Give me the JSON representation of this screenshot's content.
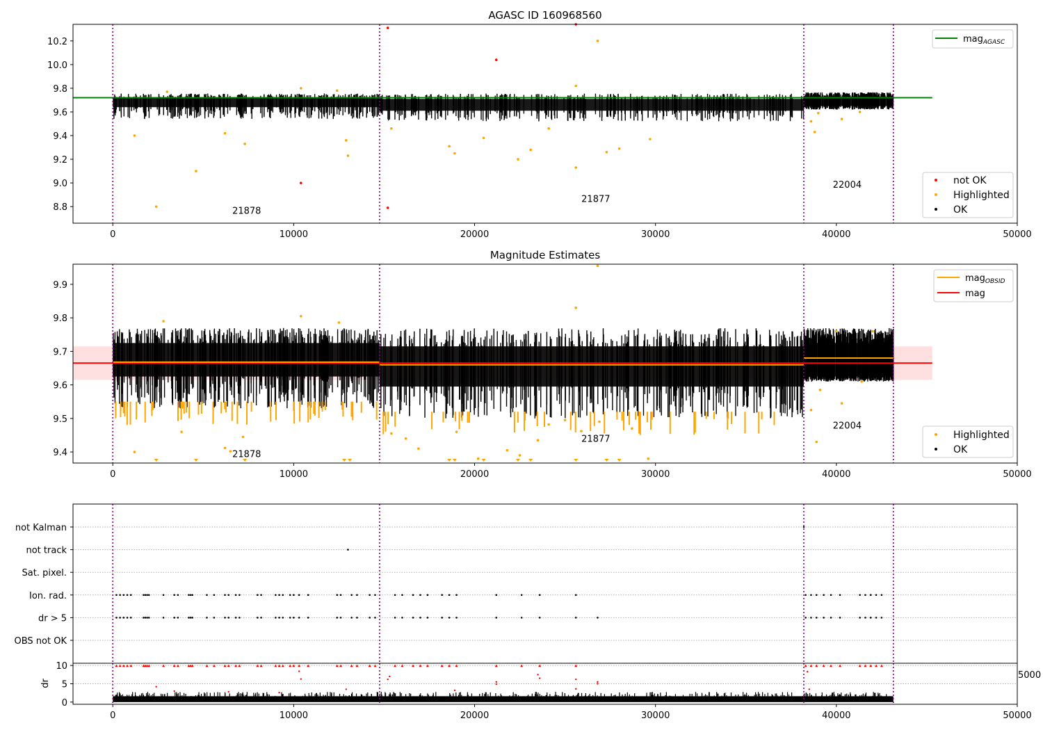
{
  "chart_data": [
    {
      "type": "scatter",
      "title": "AGASC ID 160968560",
      "xlabel": "",
      "ylabel": "",
      "xlim": [
        -2200,
        50000
      ],
      "ylim": [
        8.66,
        10.34
      ],
      "xticks": [
        0,
        10000,
        20000,
        30000,
        40000,
        50000
      ],
      "xtick_labels": [
        "0",
        "10000",
        "20000",
        "30000",
        "40000",
        "50000"
      ],
      "yticks": [
        8.8,
        9.0,
        9.2,
        9.4,
        9.6,
        9.8,
        10.0,
        10.2
      ],
      "ytick_labels": [
        "8.8",
        "9.0",
        "9.2",
        "9.4",
        "9.6",
        "9.8",
        "10.0",
        "10.2"
      ],
      "grid": false,
      "obsid_boundaries": [
        0,
        14750,
        38200,
        43150
      ],
      "obsid_labels": [
        {
          "text": "21878",
          "x": 7400,
          "y": 8.74
        },
        {
          "text": "21877",
          "x": 26700,
          "y": 8.84
        },
        {
          "text": "22004",
          "x": 40600,
          "y": 8.96
        }
      ],
      "lines": [
        {
          "name": "mag_AGASC",
          "value": 9.72,
          "x_range": [
            -2200,
            45300
          ],
          "color": "#008000"
        }
      ],
      "ok_bands": [
        {
          "x_range": [
            0,
            14750
          ],
          "center": 9.68,
          "half_width": 0.04,
          "dip_low": 9.54
        },
        {
          "x_range": [
            14750,
            38200
          ],
          "center": 9.66,
          "half_width": 0.05,
          "dip_low": 9.52
        },
        {
          "x_range": [
            38200,
            43150
          ],
          "center": 9.69,
          "half_width": 0.04,
          "dip_low": 9.62
        }
      ],
      "series": [
        {
          "name": "not OK",
          "color": "#ff0000",
          "points": [
            [
              10400,
              9.0
            ],
            [
              15200,
              8.79
            ],
            [
              15200,
              10.31
            ],
            [
              21200,
              10.04
            ],
            [
              25600,
              10.34
            ]
          ]
        },
        {
          "name": "Highlighted",
          "color": "#ffa500",
          "points": [
            [
              2400,
              8.8
            ],
            [
              4600,
              9.1
            ],
            [
              1200,
              9.4
            ],
            [
              6200,
              9.42
            ],
            [
              7300,
              9.33
            ],
            [
              12900,
              9.36
            ],
            [
              13000,
              9.23
            ],
            [
              15400,
              9.46
            ],
            [
              18600,
              9.31
            ],
            [
              18900,
              9.25
            ],
            [
              20500,
              9.38
            ],
            [
              22400,
              9.2
            ],
            [
              23100,
              9.28
            ],
            [
              24100,
              9.46
            ],
            [
              25600,
              9.13
            ],
            [
              26800,
              10.2
            ],
            [
              25600,
              9.82
            ],
            [
              27300,
              9.26
            ],
            [
              28000,
              9.29
            ],
            [
              29700,
              9.37
            ],
            [
              10400,
              9.8
            ],
            [
              12400,
              9.78
            ],
            [
              3000,
              9.77
            ],
            [
              38600,
              9.52
            ],
            [
              38800,
              9.43
            ],
            [
              39000,
              9.59
            ],
            [
              40300,
              9.54
            ],
            [
              41300,
              9.6
            ]
          ]
        },
        {
          "name": "OK",
          "color": "#000000",
          "points": []
        }
      ],
      "legend_upper": {
        "position": "upper right",
        "entries": [
          "mag_AGASC"
        ]
      },
      "legend_lower": {
        "position": "lower right",
        "entries": [
          "not OK",
          "Highlighted",
          "OK"
        ]
      }
    },
    {
      "type": "scatter",
      "title": "Magnitude Estimates",
      "xlabel": "",
      "ylabel": "",
      "xlim": [
        -2200,
        50000
      ],
      "ylim": [
        9.367,
        9.96
      ],
      "xticks": [
        0,
        10000,
        20000,
        30000,
        40000,
        50000
      ],
      "xtick_labels": [
        "0",
        "10000",
        "20000",
        "30000",
        "40000",
        "50000"
      ],
      "yticks": [
        9.4,
        9.5,
        9.6,
        9.7,
        9.8,
        9.9
      ],
      "ytick_labels": [
        "9.4",
        "9.5",
        "9.6",
        "9.7",
        "9.8",
        "9.9"
      ],
      "grid": false,
      "obsid_boundaries": [
        0,
        14750,
        38200,
        43150
      ],
      "obsid_labels": [
        {
          "text": "21878",
          "x": 7400,
          "y": 9.385
        },
        {
          "text": "21877",
          "x": 26700,
          "y": 9.43
        },
        {
          "text": "22004",
          "x": 40600,
          "y": 9.47
        }
      ],
      "mag": {
        "value": 9.665,
        "band": [
          9.615,
          9.715
        ],
        "x_range": [
          -2200,
          45300
        ],
        "color": "#ff0000"
      },
      "mag_obsid": [
        {
          "x_range": [
            0,
            14750
          ],
          "value": 9.668
        },
        {
          "x_range": [
            14750,
            38200
          ],
          "value": 9.66
        },
        {
          "x_range": [
            38200,
            43150
          ],
          "value": 9.68
        }
      ],
      "ok_bands": [
        {
          "x_range": [
            0,
            14750
          ],
          "center": 9.675,
          "half_width": 0.05,
          "dip_low": 9.53
        },
        {
          "x_range": [
            14750,
            38200
          ],
          "center": 9.655,
          "half_width": 0.06,
          "dip_low": 9.5
        },
        {
          "x_range": [
            38200,
            43150
          ],
          "center": 9.675,
          "half_width": 0.05,
          "dip_low": 9.61
        }
      ],
      "series": [
        {
          "name": "Highlighted",
          "color": "#ffa500",
          "points": [
            [
              2800,
              9.79
            ],
            [
              10400,
              9.805
            ],
            [
              12500,
              9.786
            ],
            [
              25600,
              9.83
            ],
            [
              26800,
              9.955
            ],
            [
              1200,
              9.4
            ],
            [
              3800,
              9.46
            ],
            [
              6200,
              9.412
            ],
            [
              6500,
              9.402
            ],
            [
              7200,
              9.445
            ],
            [
              15400,
              9.455
            ],
            [
              16200,
              9.44
            ],
            [
              16900,
              9.41
            ],
            [
              19000,
              9.46
            ],
            [
              20200,
              9.38
            ],
            [
              21800,
              9.405
            ],
            [
              22500,
              9.39
            ],
            [
              23500,
              9.435
            ],
            [
              24100,
              9.482
            ],
            [
              25000,
              9.495
            ],
            [
              25900,
              9.462
            ],
            [
              26900,
              9.49
            ],
            [
              28700,
              9.47
            ],
            [
              29600,
              9.38
            ],
            [
              38600,
              9.525
            ],
            [
              38900,
              9.43
            ],
            [
              39100,
              9.585
            ],
            [
              40300,
              9.545
            ],
            [
              41400,
              9.61
            ],
            [
              42000,
              9.76
            ],
            [
              40000,
              9.76
            ]
          ]
        },
        {
          "name": "OK",
          "color": "#000000",
          "points": []
        }
      ],
      "below_range_markers_x": [
        2400,
        4600,
        7300,
        12800,
        13100,
        18600,
        18900,
        20500,
        22400,
        23100,
        25600,
        27300,
        28000
      ],
      "legend_upper": {
        "position": "upper right",
        "entries": [
          "mag_OBSID",
          "mag"
        ]
      },
      "legend_lower": {
        "position": "lower right",
        "entries": [
          "Highlighted",
          "OK"
        ]
      }
    },
    {
      "type": "scatter",
      "title": "",
      "xlabel": "",
      "ylabel": "",
      "xlim": [
        -2200,
        50000
      ],
      "categories": [
        "not Kalman",
        "not track",
        "Sat. pixel.",
        "Ion. rad.",
        "dr > 5",
        "OBS not OK"
      ],
      "grid": "horizontal dotted",
      "obsid_boundaries": [
        0,
        14750,
        38200,
        43150
      ],
      "flag_points": {
        "not track": [
          13000
        ],
        "Ion. rad.": [
          200,
          400,
          600,
          800,
          1000,
          1700,
          1800,
          1900,
          2000,
          2800,
          3400,
          3600,
          4200,
          4300,
          4400,
          5200,
          5600,
          6200,
          6400,
          6800,
          7000,
          8000,
          8200,
          9000,
          9200,
          9400,
          9800,
          10000,
          10300,
          10800,
          12400,
          12600,
          13200,
          13500,
          14200,
          14500,
          15600,
          16000,
          16600,
          17000,
          17400,
          18200,
          18600,
          19000,
          21200,
          22600,
          23600,
          25600,
          38300,
          38600,
          38900,
          39300,
          39700,
          40200,
          41300,
          41600,
          41900,
          42200,
          42500
        ],
        "dr > 5": [
          200,
          400,
          600,
          800,
          1000,
          1700,
          1800,
          1900,
          2000,
          2800,
          3400,
          3600,
          4200,
          4300,
          4400,
          5200,
          5600,
          6200,
          6400,
          6800,
          7000,
          8000,
          8200,
          9000,
          9200,
          9400,
          9800,
          10000,
          10300,
          10800,
          12400,
          12600,
          13200,
          13500,
          14200,
          14500,
          15600,
          16000,
          16600,
          17000,
          17400,
          18200,
          18600,
          19000,
          21200,
          22600,
          23600,
          25600,
          26800,
          38300,
          38600,
          38900,
          39300,
          39700,
          40200,
          41300,
          41600,
          41900,
          42200,
          42500
        ]
      }
    },
    {
      "type": "scatter",
      "title": "",
      "xlabel": "",
      "ylabel": "dr",
      "xlim": [
        -2200,
        50000
      ],
      "ylim": [
        -0.6,
        10.6
      ],
      "xticks": [
        0,
        10000,
        20000,
        30000,
        40000,
        50000
      ],
      "xtick_labels": [
        "0",
        "10000",
        "20000",
        "30000",
        "40000",
        "50000"
      ],
      "yticks": [
        0,
        5,
        10
      ],
      "ytick_labels": [
        "0",
        "5",
        "10"
      ],
      "grid": "horizontal dotted",
      "obsid_boundaries": [
        0,
        14750,
        38200,
        43150
      ],
      "ok_band": {
        "x_range": [
          0,
          43150
        ],
        "low": 0.0,
        "high": 1.6
      },
      "outliers": [
        [
          2400,
          4.2
        ],
        [
          3400,
          3.0
        ],
        [
          6400,
          2.8
        ],
        [
          9200,
          2.6
        ],
        [
          10400,
          6.3
        ],
        [
          10300,
          8.4
        ],
        [
          12900,
          3.5
        ],
        [
          15200,
          6.2
        ],
        [
          15300,
          7.0
        ],
        [
          18900,
          3.2
        ],
        [
          21200,
          5.5
        ],
        [
          21200,
          4.9
        ],
        [
          23500,
          7.5
        ],
        [
          23600,
          6.5
        ],
        [
          25600,
          6.2
        ],
        [
          25600,
          3.6
        ],
        [
          26800,
          5.0
        ],
        [
          26800,
          5.5
        ],
        [
          38400,
          8.3
        ],
        [
          38500,
          3.5
        ]
      ],
      "clipped_x": [
        200,
        400,
        600,
        800,
        1000,
        1700,
        1800,
        1900,
        2000,
        2800,
        3400,
        3600,
        4200,
        4300,
        4400,
        5200,
        5600,
        6200,
        6400,
        6800,
        7000,
        8000,
        8200,
        9000,
        9200,
        9400,
        9800,
        10000,
        10300,
        10800,
        12400,
        12600,
        13200,
        13500,
        14200,
        14500,
        15600,
        16000,
        16600,
        17000,
        17400,
        18200,
        18600,
        19000,
        21200,
        22600,
        23600,
        25600,
        38300,
        38600,
        38900,
        39300,
        39700,
        40200,
        41300,
        41600,
        41900,
        42200,
        42500
      ]
    }
  ],
  "legend_labels": {
    "mag_agasc_main": "mag",
    "mag_agasc_sub": "AGASC",
    "mag_obsid_main": "mag",
    "mag_obsid_sub": "OBSID",
    "mag": "mag",
    "not_ok": "not OK",
    "highlighted": "Highlighted",
    "ok": "OK"
  },
  "stray_tick_label": "5000"
}
